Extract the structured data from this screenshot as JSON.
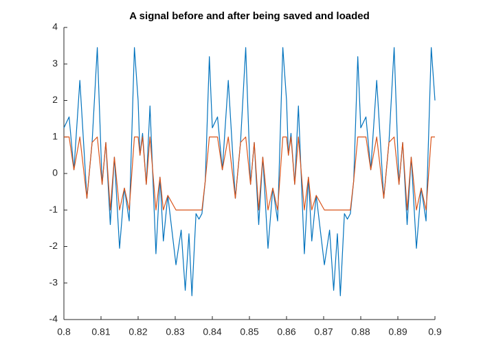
{
  "chart_data": {
    "type": "line",
    "title": "A signal before and after being saved and loaded",
    "x": [
      0.8,
      0.8014,
      0.8027,
      0.8043,
      0.8062,
      0.8076,
      0.809,
      0.8103,
      0.8113,
      0.8125,
      0.8136,
      0.815,
      0.8163,
      0.8176,
      0.819,
      0.82,
      0.8205,
      0.8212,
      0.8222,
      0.8232,
      0.8248,
      0.8259,
      0.8268,
      0.828,
      0.8302,
      0.8316,
      0.8327,
      0.8337,
      0.8345,
      0.8356,
      0.8364,
      0.8372,
      0.8381,
      0.8392,
      0.84,
      0.8414,
      0.8427,
      0.8443,
      0.8462,
      0.8476,
      0.849,
      0.8503,
      0.8513,
      0.8525,
      0.8536,
      0.855,
      0.8563,
      0.8576,
      0.859,
      0.86,
      0.8605,
      0.8612,
      0.8622,
      0.8632,
      0.8648,
      0.8659,
      0.8668,
      0.868,
      0.8702,
      0.8716,
      0.8727,
      0.8737,
      0.8745,
      0.8756,
      0.8764,
      0.8772,
      0.8781,
      0.8792,
      0.88,
      0.8814,
      0.8827,
      0.8843,
      0.8862,
      0.8876,
      0.889,
      0.8903,
      0.8913,
      0.8925,
      0.8936,
      0.895,
      0.8963,
      0.8976,
      0.899,
      0.9
    ],
    "series": [
      {
        "color": "#0072bd",
        "values": [
          1.25,
          1.55,
          0.1,
          2.55,
          -0.68,
          0.85,
          3.45,
          -0.3,
          0.85,
          -1.4,
          0.45,
          -2.05,
          -0.4,
          -1.3,
          3.45,
          2.0,
          0.5,
          1.1,
          -0.3,
          1.85,
          -2.2,
          -0.1,
          -1.85,
          -0.6,
          -2.5,
          -1.55,
          -3.2,
          -1.65,
          -3.35,
          -1.1,
          -1.25,
          -1.1,
          -0.2,
          3.2,
          1.25,
          1.55,
          0.1,
          2.55,
          -0.68,
          0.85,
          3.45,
          -0.3,
          0.85,
          -1.4,
          0.45,
          -2.05,
          -0.4,
          -1.3,
          3.45,
          2.0,
          0.5,
          1.1,
          -0.3,
          1.85,
          -2.2,
          -0.1,
          -1.85,
          -0.6,
          -2.5,
          -1.55,
          -3.2,
          -1.65,
          -3.35,
          -1.1,
          -1.25,
          -1.1,
          -0.2,
          3.2,
          1.25,
          1.55,
          0.1,
          2.55,
          -0.68,
          0.85,
          3.45,
          -0.3,
          0.85,
          -1.4,
          0.45,
          -2.05,
          -0.4,
          -1.3,
          3.45,
          2.0
        ]
      },
      {
        "color": "#d95319",
        "values": [
          1,
          1,
          0.1,
          1,
          -0.68,
          0.85,
          1,
          -0.3,
          0.85,
          -1,
          0.45,
          -1,
          -0.4,
          -1,
          1,
          1,
          0.5,
          1,
          -0.3,
          1,
          -1,
          -0.1,
          -1,
          -0.6,
          -1,
          -1,
          -1,
          -1,
          -1,
          -1,
          -1,
          -1,
          -0.2,
          1,
          1,
          1,
          0.1,
          1,
          -0.68,
          0.85,
          1,
          -0.3,
          0.85,
          -1,
          0.45,
          -1,
          -0.4,
          -1,
          1,
          1,
          0.5,
          1,
          -0.3,
          1,
          -1,
          -0.1,
          -1,
          -0.6,
          -1,
          -1,
          -1,
          -1,
          -1,
          -1,
          -1,
          -1,
          -0.2,
          1,
          1,
          1,
          0.1,
          1,
          -0.68,
          0.85,
          1,
          -0.3,
          0.85,
          -1,
          0.45,
          -1,
          -0.4,
          -1,
          1,
          1
        ]
      }
    ],
    "xlim": [
      0.8,
      0.9
    ],
    "xticks": [
      0.8,
      0.81,
      0.82,
      0.83,
      0.84,
      0.85,
      0.86,
      0.87,
      0.88,
      0.89,
      0.9
    ],
    "ylim": [
      -4,
      4
    ],
    "yticks": [
      -4,
      -3,
      -2,
      -1,
      0,
      1,
      2,
      3,
      4
    ],
    "grid": false
  }
}
